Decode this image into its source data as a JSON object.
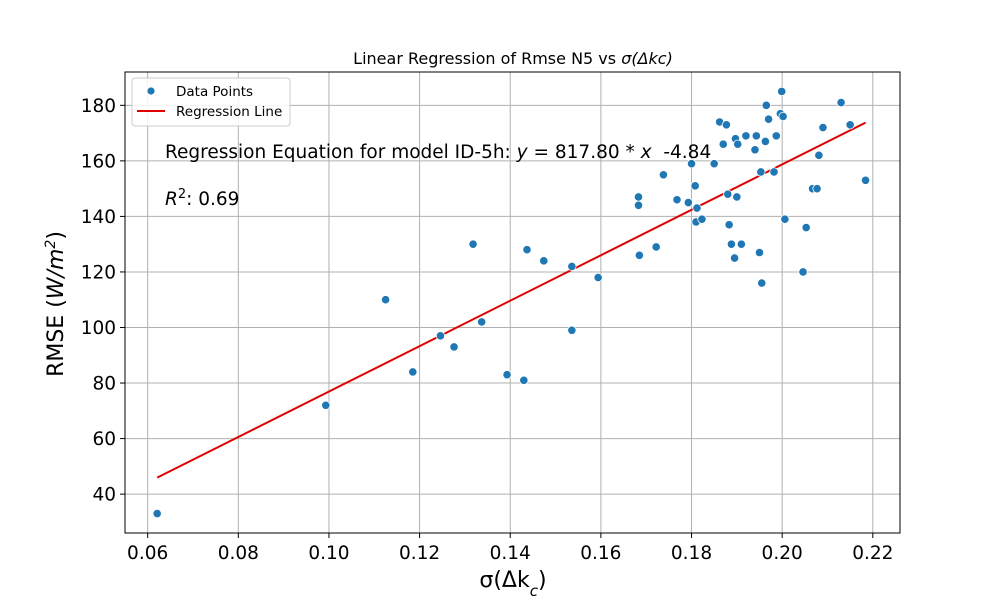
{
  "chart_data": {
    "type": "scatter",
    "title_prefix": "Linear Regression of Rmse N5 vs ",
    "title_symbol": "σ(Δkc)",
    "xlabel": "σ(Δk_c)",
    "ylabel_text": "RMSE (",
    "ylabel_unit": "W/m",
    "ylabel_exp": "2",
    "ylabel_close": ")",
    "xlim": [
      0.055,
      0.226
    ],
    "ylim": [
      26,
      192
    ],
    "xticks": [
      0.06,
      0.08,
      0.1,
      0.12,
      0.14,
      0.16,
      0.18,
      0.2,
      0.22
    ],
    "xtick_labels": [
      "0.06",
      "0.08",
      "0.10",
      "0.12",
      "0.14",
      "0.16",
      "0.18",
      "0.20",
      "0.22"
    ],
    "yticks": [
      40,
      60,
      80,
      100,
      120,
      140,
      160,
      180
    ],
    "ytick_labels": [
      "40",
      "60",
      "80",
      "100",
      "120",
      "140",
      "160",
      "180"
    ],
    "grid": true,
    "legend_position": "top-left",
    "series": [
      {
        "name": "Data Points",
        "kind": "scatter",
        "color": "#1f77b4",
        "x": [
          0.0621,
          0.0993,
          0.1125,
          0.1185,
          0.1246,
          0.1276,
          0.1318,
          0.1337,
          0.1393,
          0.143,
          0.1437,
          0.1474,
          0.1536,
          0.1536,
          0.1594,
          0.1683,
          0.1683,
          0.1685,
          0.1722,
          0.1738,
          0.1768,
          0.1793,
          0.18,
          0.1808,
          0.181,
          0.1812,
          0.1823,
          0.185,
          0.1862,
          0.187,
          0.1877,
          0.188,
          0.1883,
          0.1888,
          0.1895,
          0.1897,
          0.19,
          0.1902,
          0.191,
          0.192,
          0.194,
          0.1943,
          0.195,
          0.1953,
          0.1955,
          0.1963,
          0.1965,
          0.197,
          0.1982,
          0.1987,
          0.1996,
          0.1999,
          0.2002,
          0.2006,
          0.2046,
          0.2053,
          0.2067,
          0.2077,
          0.2081,
          0.209,
          0.213,
          0.215,
          0.2184
        ],
        "y": [
          33,
          72,
          110,
          84,
          97,
          93,
          130,
          102,
          83,
          81,
          128,
          124,
          122,
          99,
          118,
          147,
          144,
          126,
          129,
          155,
          146,
          145,
          159,
          151,
          138,
          143,
          139,
          159,
          174,
          166,
          173,
          148,
          137,
          130,
          125,
          168,
          147,
          166,
          130,
          169,
          164,
          169,
          127,
          156,
          116,
          167,
          180,
          175,
          156,
          169,
          177,
          185,
          176,
          139,
          120,
          136,
          150,
          150,
          162,
          172,
          181,
          173,
          153
        ]
      },
      {
        "name": "Regression Line",
        "kind": "line",
        "color": "#e00000",
        "slope": 817.8,
        "intercept": -4.84,
        "x_range": [
          0.0621,
          0.2184
        ]
      }
    ],
    "annotations": {
      "equation_prefix": "Regression Equation for model ID-5h: ",
      "equation_var_y": "y",
      "equation_middle": " = 817.80 * ",
      "equation_var_x": "x",
      "equation_suffix": "  -4.84",
      "r2_label": "R",
      "r2_exp": "2",
      "r2_value": ": 0.69"
    }
  }
}
